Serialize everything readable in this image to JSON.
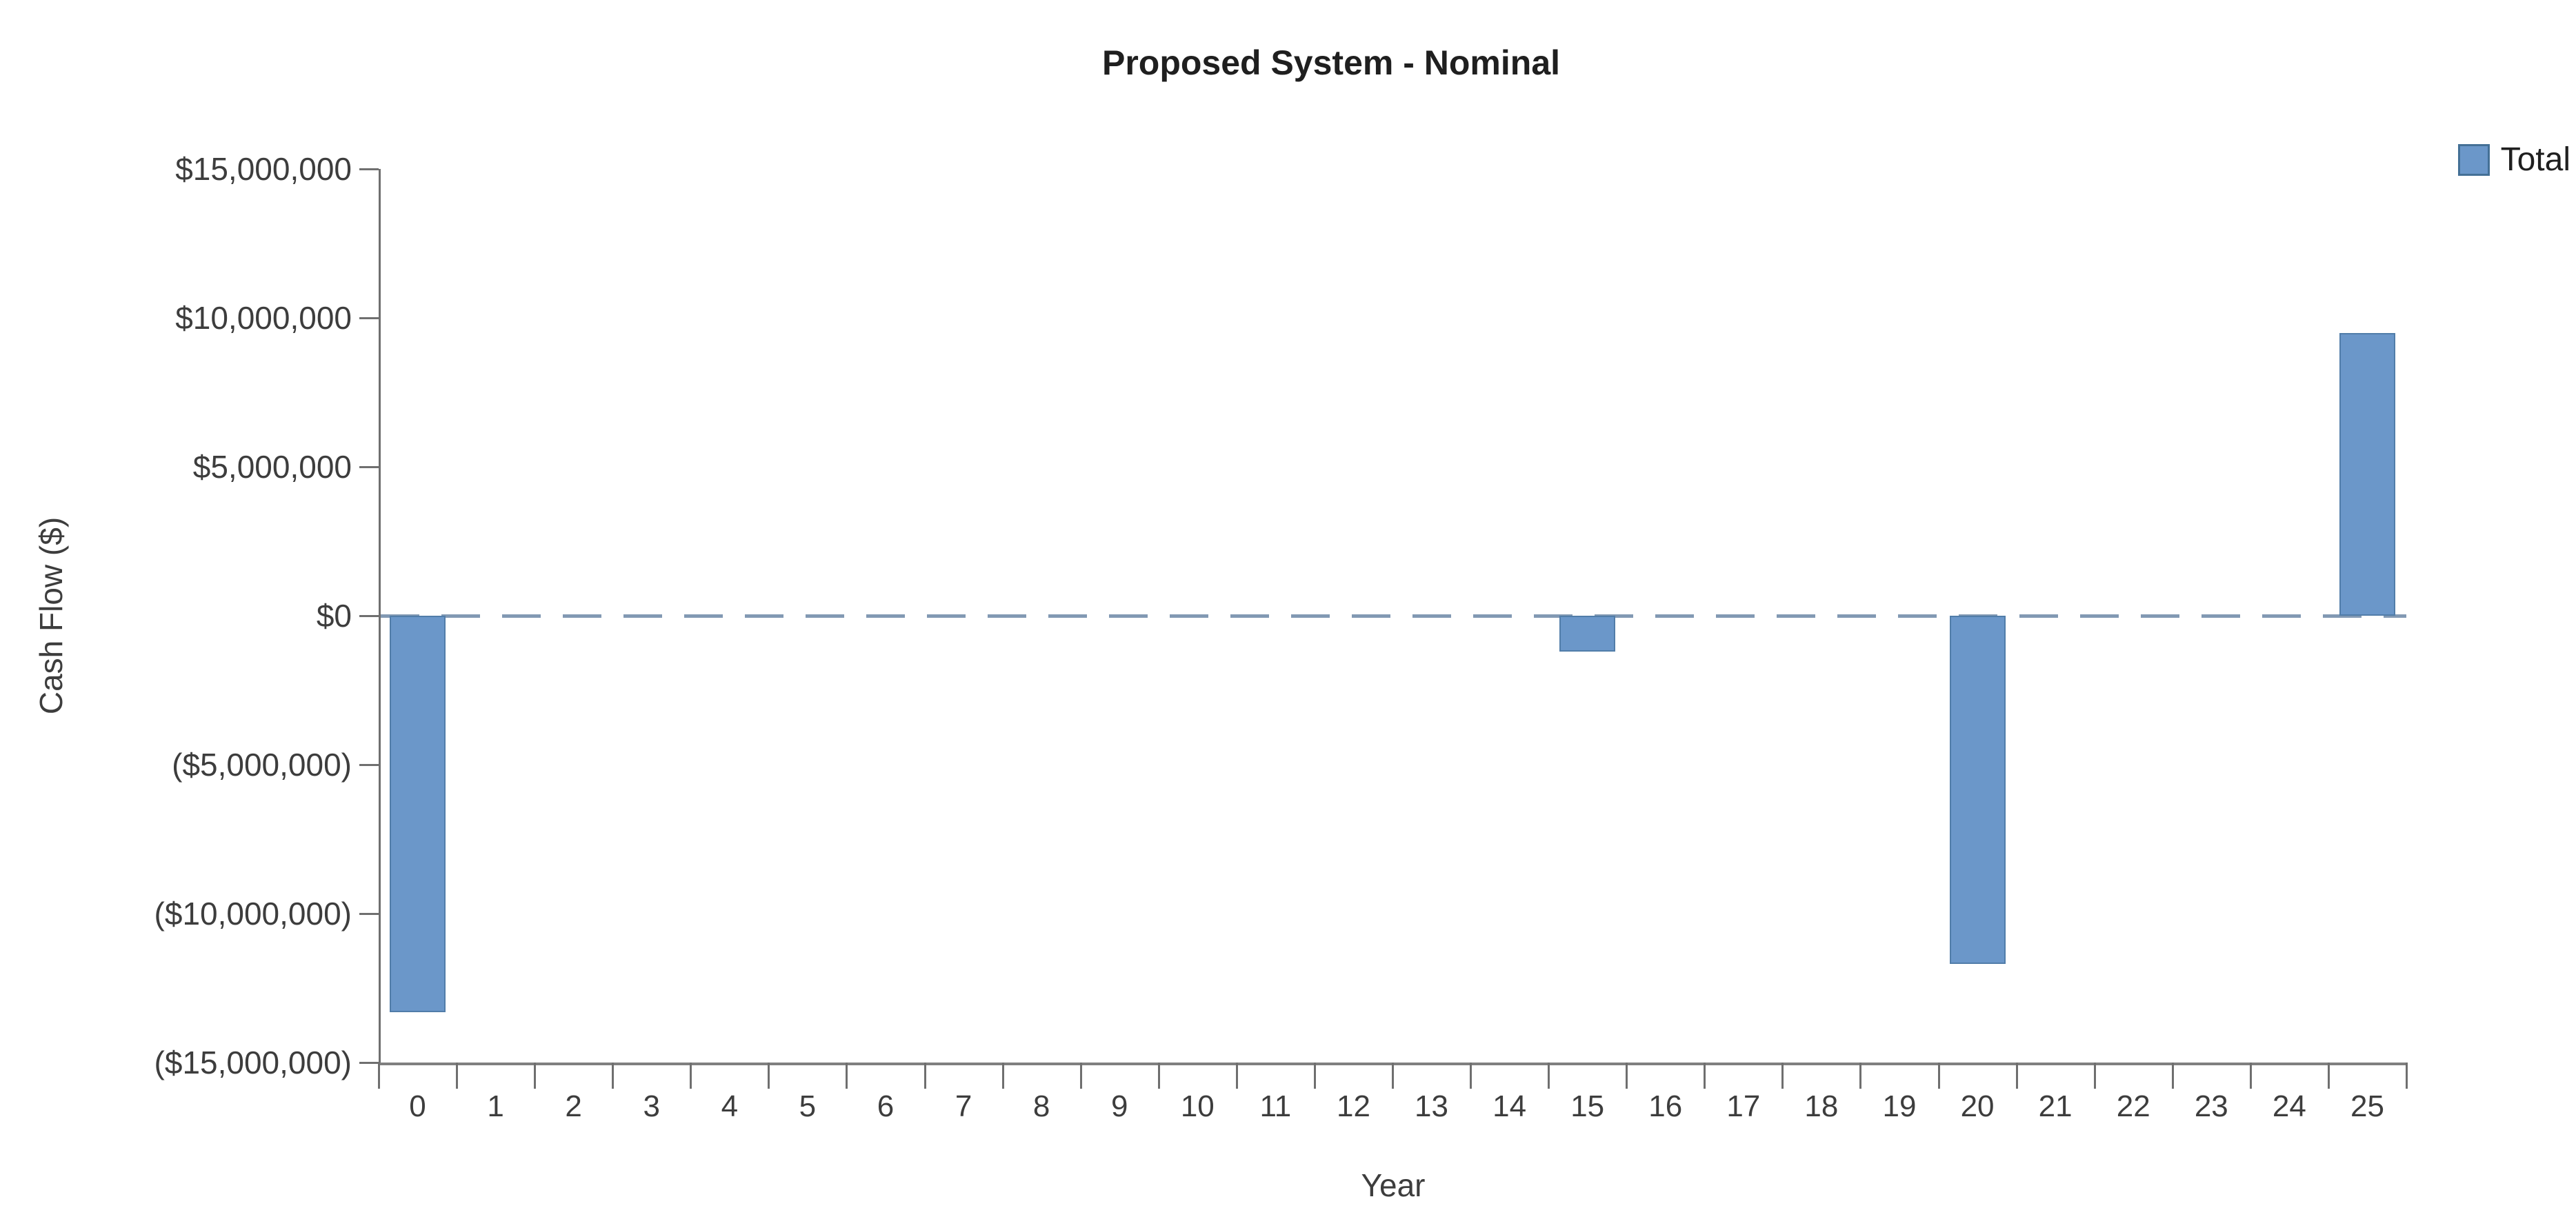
{
  "chart_data": {
    "type": "bar",
    "title": "Proposed System - Nominal",
    "xlabel": "Year",
    "ylabel": "Cash Flow ($)",
    "categories": [
      "0",
      "1",
      "2",
      "3",
      "4",
      "5",
      "6",
      "7",
      "8",
      "9",
      "10",
      "11",
      "12",
      "13",
      "14",
      "15",
      "16",
      "17",
      "18",
      "19",
      "20",
      "21",
      "22",
      "23",
      "24",
      "25"
    ],
    "series": [
      {
        "name": "Total",
        "values_millions": [
          -13.3,
          0,
          0,
          0,
          0,
          0,
          0,
          0,
          0,
          0,
          0,
          0,
          0,
          0,
          0,
          -1.2,
          0,
          0,
          0,
          0,
          -11.7,
          0,
          0,
          0,
          0,
          9.5
        ]
      }
    ],
    "ylim_millions": [
      -15,
      15
    ],
    "y_tick_step_millions": 5,
    "y_tick_labels": [
      "$15,000,000",
      "$10,000,000",
      "$5,000,000",
      "$0",
      "($5,000,000)",
      "($10,000,000)",
      "($15,000,000)"
    ],
    "legend_position": "top-right",
    "grid": "none (dashed line at zero only)",
    "zero_line_style": "dashed",
    "colors": {
      "bar_fill": "#6b97c9",
      "bar_border": "#517da9",
      "zero_line": "#8299b3",
      "axis": "#6f6f6f",
      "tick_text": "#3d3d3d",
      "title_text": "#1f1f1f"
    }
  }
}
